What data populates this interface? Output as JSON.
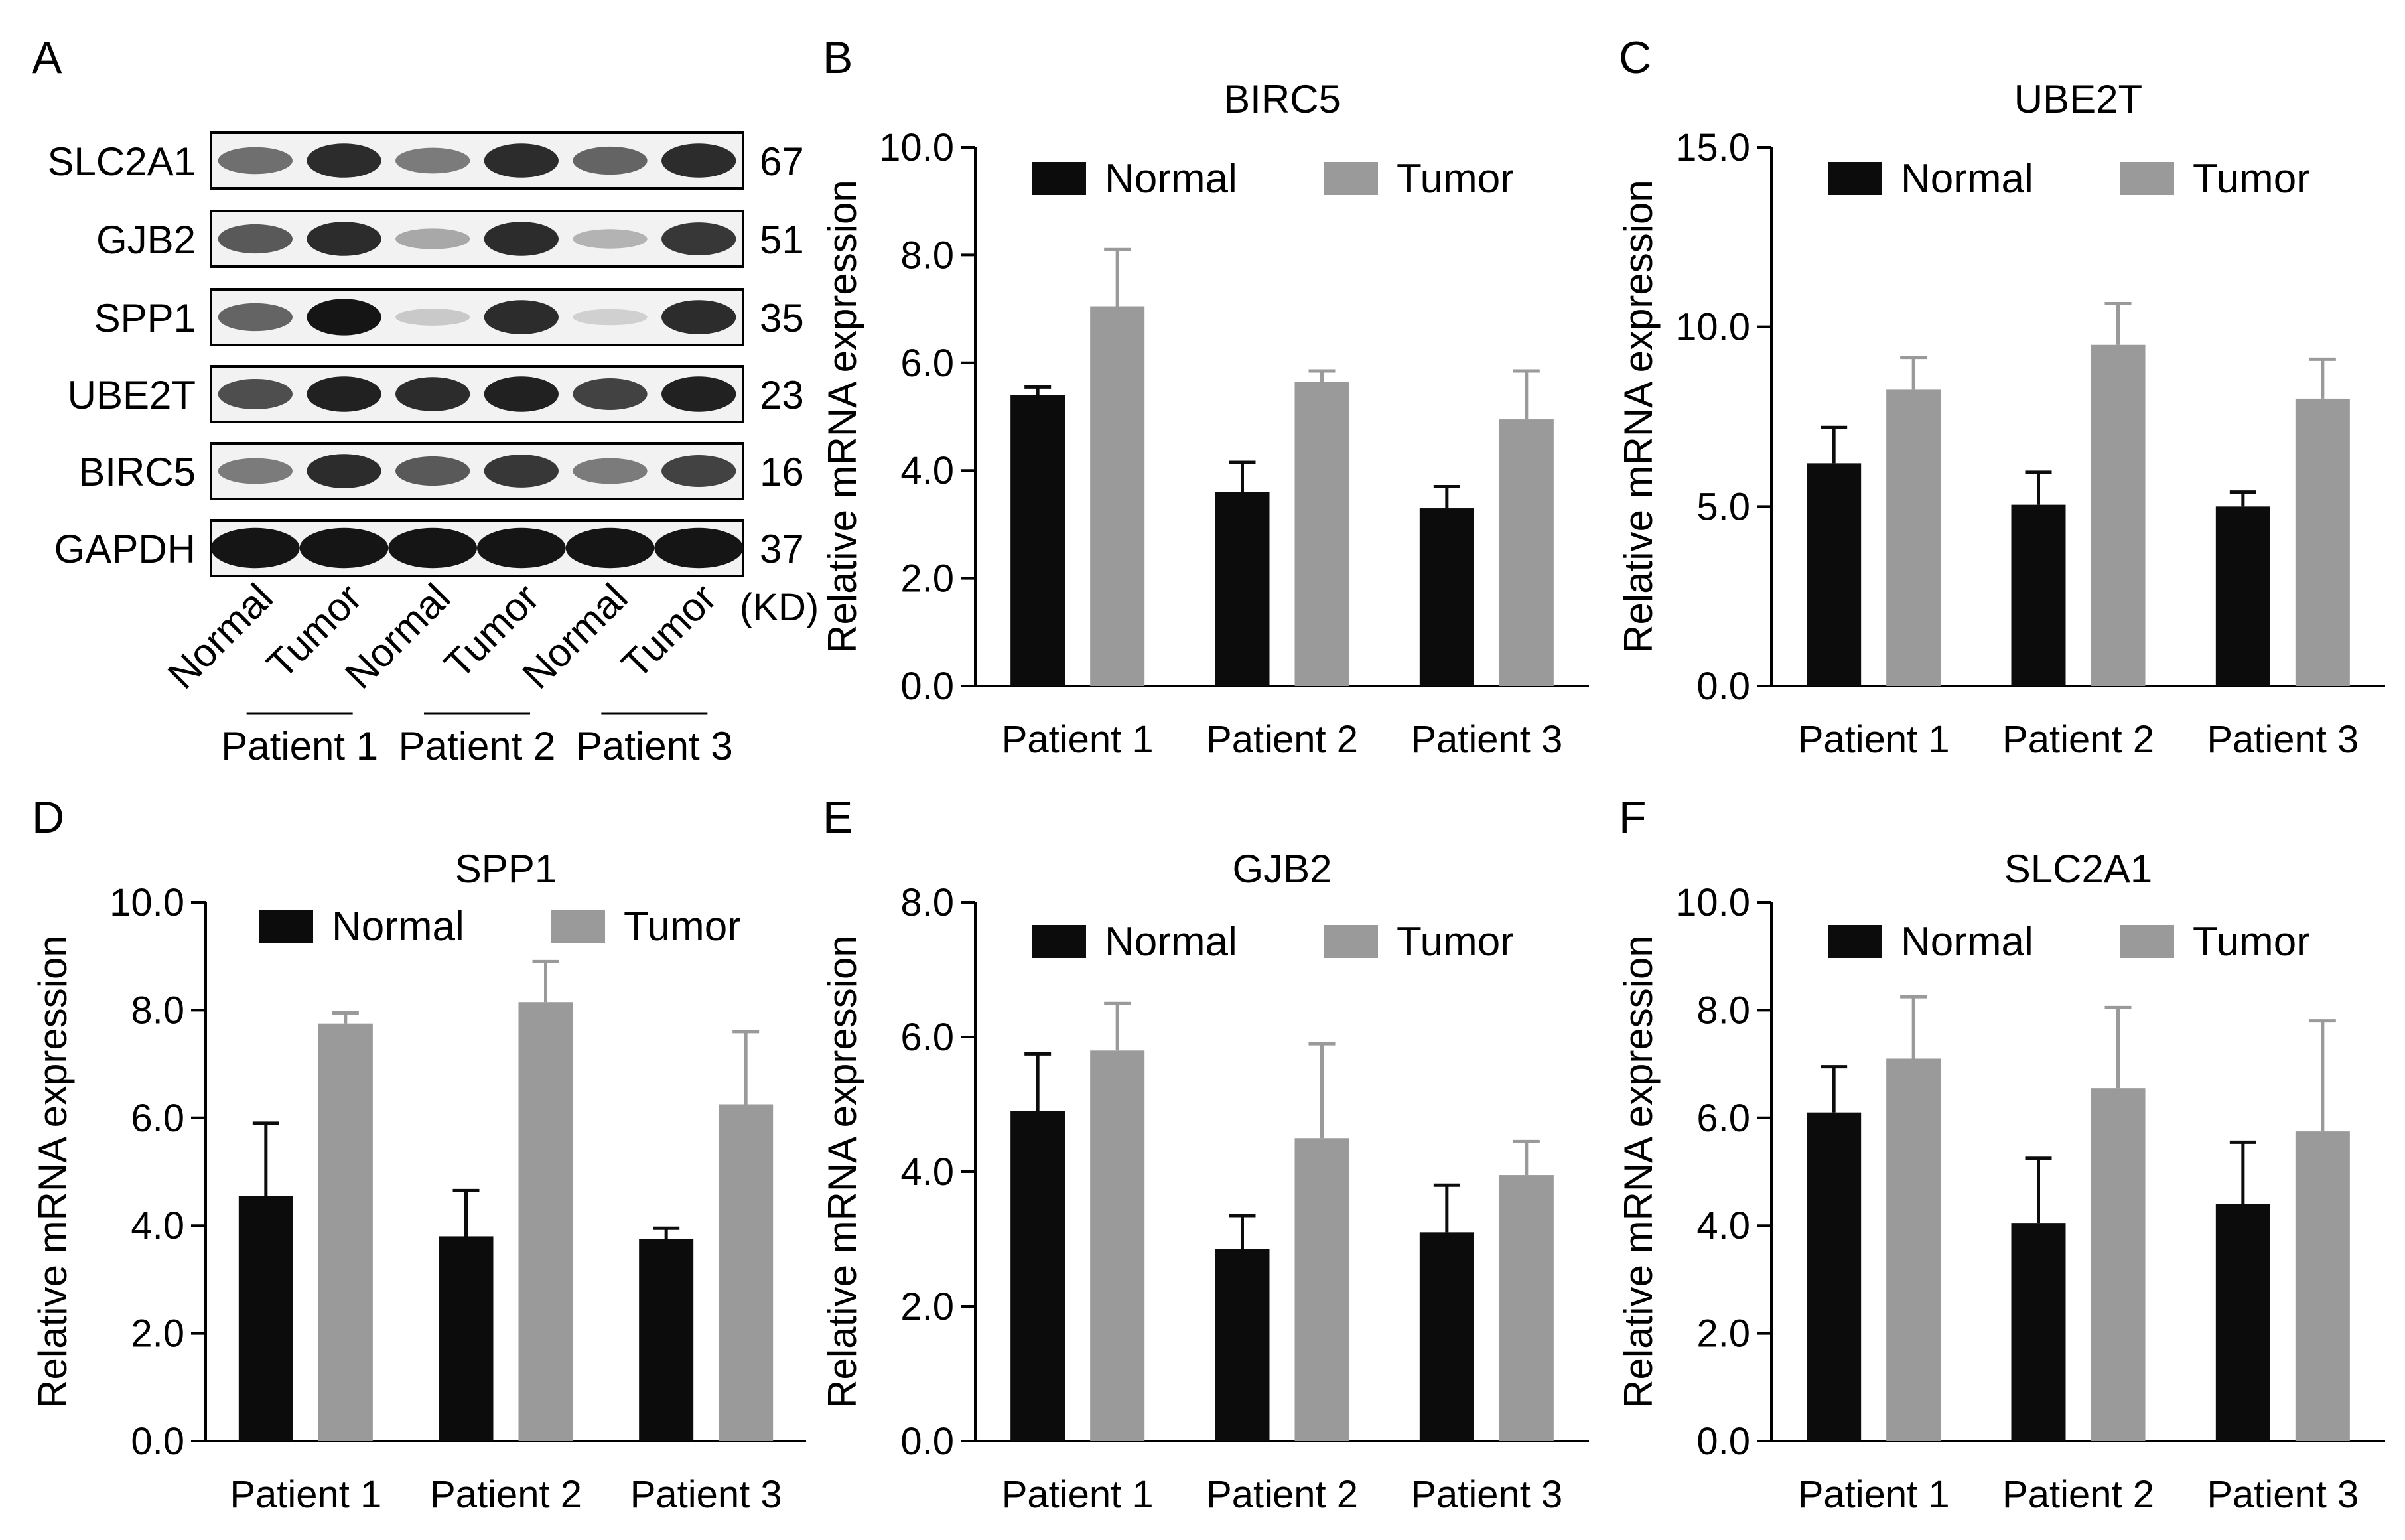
{
  "panels": [
    {
      "letter": "A"
    },
    {
      "letter": "B"
    },
    {
      "letter": "C"
    },
    {
      "letter": "D"
    },
    {
      "letter": "E"
    },
    {
      "letter": "F"
    }
  ],
  "western_blot": {
    "proteins": [
      {
        "name": "SLC2A1",
        "kd": "67"
      },
      {
        "name": "GJB2",
        "kd": "51"
      },
      {
        "name": "SPP1",
        "kd": "35"
      },
      {
        "name": "UBE2T",
        "kd": "23"
      },
      {
        "name": "BIRC5",
        "kd": "16"
      },
      {
        "name": "GAPDH",
        "kd": "37"
      }
    ],
    "kd_unit": "(KD)",
    "lanes": [
      "Normal",
      "Tumor",
      "Normal",
      "Tumor",
      "Normal",
      "Tumor"
    ],
    "groups": [
      "Patient 1",
      "Patient 2",
      "Patient 3"
    ],
    "band_intensity": [
      [
        0.55,
        0.85,
        0.5,
        0.85,
        0.6,
        0.85
      ],
      [
        0.65,
        0.85,
        0.3,
        0.85,
        0.25,
        0.8
      ],
      [
        0.6,
        0.95,
        0.15,
        0.85,
        0.12,
        0.85
      ],
      [
        0.7,
        0.9,
        0.85,
        0.9,
        0.75,
        0.9
      ],
      [
        0.5,
        0.85,
        0.65,
        0.8,
        0.5,
        0.75
      ],
      [
        0.95,
        0.95,
        0.95,
        0.95,
        0.95,
        0.95
      ]
    ]
  },
  "chart_data": [
    {
      "type": "bar",
      "title": "BIRC5",
      "categories": [
        "Patient 1",
        "Patient 2",
        "Patient 3"
      ],
      "ylabel": "Relative mRNA expression",
      "ylim": [
        0,
        10
      ],
      "yticks": [
        "0.0",
        "2.0",
        "4.0",
        "6.0",
        "8.0",
        "10.0"
      ],
      "legend": "top",
      "series": [
        {
          "name": "Normal",
          "values": [
            5.4,
            3.6,
            3.3
          ],
          "error": [
            0.15,
            0.55,
            0.4
          ]
        },
        {
          "name": "Tumor",
          "values": [
            7.05,
            5.65,
            4.95
          ],
          "error": [
            1.05,
            0.2,
            0.9
          ]
        }
      ]
    },
    {
      "type": "bar",
      "title": "UBE2T",
      "categories": [
        "Patient 1",
        "Patient 2",
        "Patient 3"
      ],
      "ylabel": "Relative mRNA expression",
      "ylim": [
        0,
        15
      ],
      "yticks": [
        "0.0",
        "5.0",
        "10.0",
        "15.0"
      ],
      "legend": "top",
      "series": [
        {
          "name": "Normal",
          "values": [
            6.2,
            5.05,
            5.0
          ],
          "error": [
            1.0,
            0.9,
            0.4
          ]
        },
        {
          "name": "Tumor",
          "values": [
            8.25,
            9.5,
            8.0
          ],
          "error": [
            0.9,
            1.15,
            1.1
          ]
        }
      ]
    },
    {
      "type": "bar",
      "title": "SPP1",
      "categories": [
        "Patient 1",
        "Patient 2",
        "Patient 3"
      ],
      "ylabel": "Relative mRNA expression",
      "ylim": [
        0,
        10
      ],
      "yticks": [
        "0.0",
        "2.0",
        "4.0",
        "6.0",
        "8.0",
        "10.0"
      ],
      "legend": "top",
      "series": [
        {
          "name": "Normal",
          "values": [
            4.55,
            3.8,
            3.75
          ],
          "error": [
            1.35,
            0.85,
            0.2
          ]
        },
        {
          "name": "Tumor",
          "values": [
            7.75,
            8.15,
            6.25
          ],
          "error": [
            0.2,
            0.75,
            1.35
          ]
        }
      ]
    },
    {
      "type": "bar",
      "title": "GJB2",
      "categories": [
        "Patient 1",
        "Patient 2",
        "Patient 3"
      ],
      "ylabel": "Relative mRNA expression",
      "ylim": [
        0,
        8
      ],
      "yticks": [
        "0.0",
        "2.0",
        "4.0",
        "6.0",
        "8.0"
      ],
      "legend": "top",
      "series": [
        {
          "name": "Normal",
          "values": [
            4.9,
            2.85,
            3.1
          ],
          "error": [
            0.85,
            0.5,
            0.7
          ]
        },
        {
          "name": "Tumor",
          "values": [
            5.8,
            4.5,
            3.95
          ],
          "error": [
            0.7,
            1.4,
            0.5
          ]
        }
      ]
    },
    {
      "type": "bar",
      "title": "SLC2A1",
      "categories": [
        "Patient 1",
        "Patient 2",
        "Patient 3"
      ],
      "ylabel": "Relative mRNA expression",
      "ylim": [
        0,
        10
      ],
      "yticks": [
        "0.0",
        "2.0",
        "4.0",
        "6.0",
        "8.0",
        "10.0"
      ],
      "legend": "top",
      "series": [
        {
          "name": "Normal",
          "values": [
            6.1,
            4.05,
            4.4
          ],
          "error": [
            0.85,
            1.2,
            1.15
          ]
        },
        {
          "name": "Tumor",
          "values": [
            7.1,
            6.55,
            5.75
          ],
          "error": [
            1.15,
            1.5,
            2.05
          ]
        }
      ]
    }
  ],
  "colors": {
    "normal": "#0c0c0c",
    "tumor": "#9a9a9a",
    "axis": "#000000"
  }
}
